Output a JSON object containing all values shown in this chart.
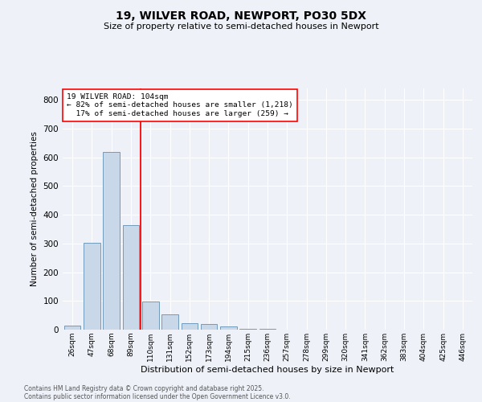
{
  "title1": "19, WILVER ROAD, NEWPORT, PO30 5DX",
  "title2": "Size of property relative to semi-detached houses in Newport",
  "xlabel": "Distribution of semi-detached houses by size in Newport",
  "ylabel": "Number of semi-detached properties",
  "categories": [
    "26sqm",
    "47sqm",
    "68sqm",
    "89sqm",
    "110sqm",
    "131sqm",
    "152sqm",
    "173sqm",
    "194sqm",
    "215sqm",
    "236sqm",
    "257sqm",
    "278sqm",
    "299sqm",
    "320sqm",
    "341sqm",
    "362sqm",
    "383sqm",
    "404sqm",
    "425sqm",
    "446sqm"
  ],
  "values": [
    13,
    302,
    618,
    365,
    97,
    52,
    22,
    20,
    10,
    4,
    2,
    1,
    0,
    0,
    0,
    0,
    0,
    0,
    0,
    0,
    0
  ],
  "bar_color": "#c8d8e8",
  "bar_edge_color": "#6090b0",
  "background_color": "#eef2f8",
  "grid_color": "#ffffff",
  "property_line_x": 3.5,
  "property_sqm": 104,
  "pct_smaller": 82,
  "count_smaller": 1218,
  "pct_larger": 17,
  "count_larger": 259,
  "ylim": [
    0,
    840
  ],
  "yticks": [
    0,
    100,
    200,
    300,
    400,
    500,
    600,
    700,
    800
  ],
  "footnote1": "Contains HM Land Registry data © Crown copyright and database right 2025.",
  "footnote2": "Contains public sector information licensed under the Open Government Licence v3.0."
}
